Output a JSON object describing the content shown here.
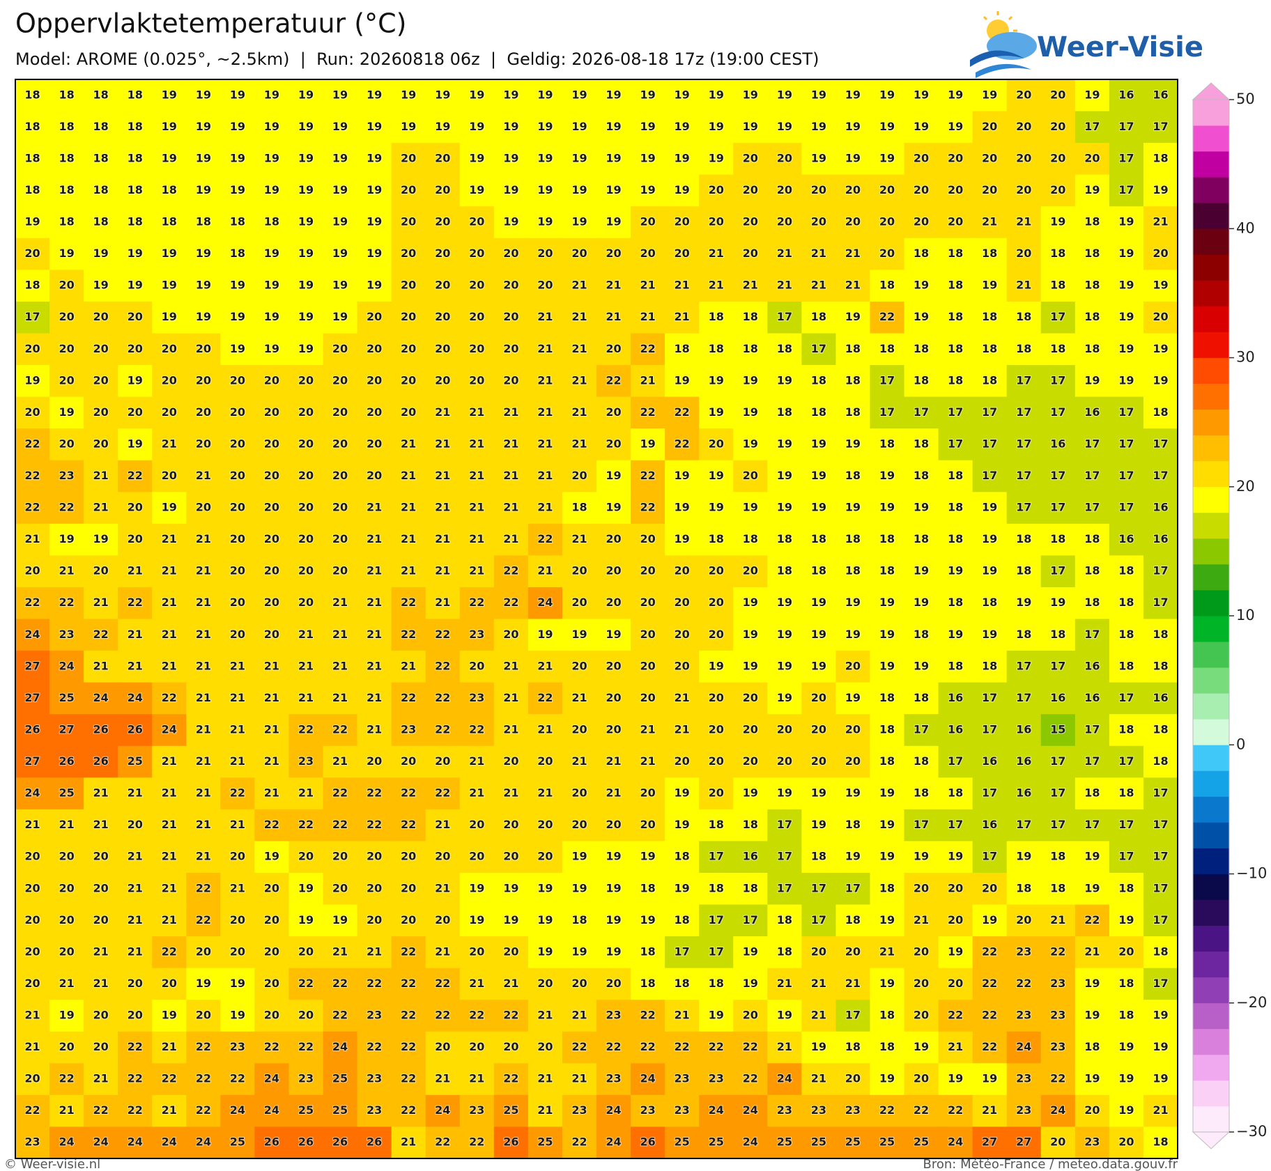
{
  "header": {
    "title": "Oppervlaktetemperatuur (°C)",
    "subtitle": "Model: AROME (0.025°, ~2.5km)  |  Run: 20260818 06z  |  Geldig: 2026-08-18 17z (19:00 CEST)"
  },
  "logo": {
    "text": "Weer-Visie"
  },
  "map": {
    "type": "grid",
    "values": [
      [
        18,
        18,
        18,
        18,
        19,
        19,
        19,
        19,
        19,
        19,
        19,
        19,
        19,
        19,
        19,
        19,
        19,
        19,
        19,
        19,
        19,
        19,
        19,
        19,
        19,
        19,
        19,
        19,
        19,
        20,
        20,
        19,
        16,
        16
      ],
      [
        18,
        18,
        18,
        18,
        19,
        19,
        19,
        19,
        19,
        19,
        19,
        19,
        19,
        19,
        19,
        19,
        19,
        19,
        19,
        19,
        19,
        19,
        19,
        19,
        19,
        19,
        19,
        19,
        20,
        20,
        20,
        17,
        17,
        17
      ],
      [
        18,
        18,
        18,
        18,
        19,
        19,
        19,
        19,
        19,
        19,
        19,
        20,
        20,
        19,
        19,
        19,
        19,
        19,
        19,
        19,
        19,
        20,
        20,
        19,
        19,
        19,
        20,
        20,
        20,
        20,
        20,
        20,
        17,
        18
      ],
      [
        18,
        18,
        18,
        18,
        18,
        19,
        19,
        19,
        19,
        19,
        19,
        20,
        20,
        19,
        19,
        19,
        19,
        19,
        19,
        19,
        20,
        20,
        20,
        20,
        20,
        20,
        20,
        20,
        20,
        20,
        20,
        19,
        17,
        19
      ],
      [
        19,
        18,
        18,
        18,
        18,
        18,
        18,
        18,
        19,
        19,
        19,
        20,
        20,
        20,
        19,
        19,
        19,
        19,
        20,
        20,
        20,
        20,
        20,
        20,
        20,
        20,
        20,
        20,
        21,
        21,
        19,
        18,
        19,
        21
      ],
      [
        20,
        19,
        19,
        19,
        19,
        19,
        18,
        19,
        19,
        19,
        19,
        20,
        20,
        20,
        20,
        20,
        20,
        20,
        20,
        20,
        21,
        20,
        21,
        21,
        21,
        20,
        18,
        18,
        18,
        20,
        18,
        18,
        19,
        20
      ],
      [
        18,
        20,
        19,
        19,
        19,
        19,
        19,
        19,
        19,
        19,
        19,
        20,
        20,
        20,
        20,
        20,
        21,
        21,
        21,
        21,
        21,
        21,
        21,
        21,
        21,
        18,
        19,
        18,
        19,
        21,
        18,
        18,
        19,
        19
      ],
      [
        17,
        20,
        20,
        20,
        19,
        19,
        19,
        19,
        19,
        19,
        20,
        20,
        20,
        20,
        20,
        21,
        21,
        21,
        21,
        21,
        18,
        18,
        17,
        18,
        19,
        22,
        19,
        18,
        18,
        18,
        17,
        18,
        19,
        20
      ],
      [
        20,
        20,
        20,
        20,
        20,
        20,
        19,
        19,
        19,
        20,
        20,
        20,
        20,
        20,
        20,
        21,
        21,
        20,
        22,
        18,
        18,
        18,
        18,
        17,
        18,
        18,
        18,
        18,
        18,
        18,
        18,
        18,
        19,
        19
      ],
      [
        19,
        20,
        20,
        19,
        20,
        20,
        20,
        20,
        20,
        20,
        20,
        20,
        20,
        20,
        20,
        21,
        21,
        22,
        21,
        19,
        19,
        19,
        19,
        18,
        18,
        17,
        18,
        18,
        18,
        17,
        17,
        19,
        19,
        19
      ],
      [
        20,
        19,
        20,
        20,
        20,
        20,
        20,
        20,
        20,
        20,
        20,
        20,
        21,
        21,
        21,
        21,
        21,
        20,
        22,
        22,
        19,
        19,
        18,
        18,
        18,
        17,
        17,
        17,
        17,
        17,
        17,
        16,
        17,
        18
      ],
      [
        22,
        20,
        20,
        19,
        21,
        20,
        20,
        20,
        20,
        20,
        20,
        21,
        21,
        21,
        21,
        21,
        21,
        20,
        19,
        22,
        20,
        19,
        19,
        19,
        19,
        18,
        18,
        17,
        17,
        17,
        16,
        17,
        17,
        17
      ],
      [
        22,
        23,
        21,
        22,
        20,
        21,
        20,
        20,
        20,
        20,
        20,
        21,
        21,
        21,
        21,
        21,
        20,
        19,
        22,
        19,
        19,
        20,
        19,
        19,
        18,
        19,
        18,
        18,
        17,
        17,
        17,
        17,
        17,
        17
      ],
      [
        22,
        22,
        21,
        20,
        19,
        20,
        20,
        20,
        20,
        20,
        21,
        21,
        21,
        21,
        21,
        21,
        18,
        19,
        22,
        19,
        19,
        19,
        19,
        19,
        19,
        19,
        19,
        18,
        19,
        17,
        17,
        17,
        17,
        16
      ],
      [
        21,
        19,
        19,
        20,
        21,
        21,
        20,
        20,
        20,
        20,
        21,
        21,
        21,
        21,
        21,
        22,
        21,
        20,
        20,
        19,
        18,
        18,
        18,
        18,
        18,
        18,
        18,
        18,
        19,
        18,
        18,
        18,
        16,
        16
      ],
      [
        20,
        21,
        20,
        21,
        21,
        21,
        20,
        20,
        20,
        20,
        21,
        21,
        21,
        21,
        22,
        21,
        20,
        20,
        20,
        20,
        20,
        20,
        18,
        18,
        18,
        18,
        19,
        19,
        19,
        18,
        17,
        18,
        18,
        17
      ],
      [
        22,
        22,
        21,
        22,
        21,
        21,
        20,
        20,
        20,
        21,
        21,
        22,
        21,
        22,
        22,
        24,
        20,
        20,
        20,
        20,
        20,
        19,
        19,
        19,
        19,
        19,
        19,
        18,
        18,
        19,
        19,
        18,
        18,
        17
      ],
      [
        24,
        23,
        22,
        21,
        21,
        21,
        20,
        20,
        21,
        21,
        21,
        22,
        22,
        23,
        20,
        19,
        19,
        19,
        20,
        20,
        20,
        19,
        19,
        19,
        19,
        19,
        18,
        19,
        19,
        18,
        18,
        17,
        18,
        18
      ],
      [
        27,
        24,
        21,
        21,
        21,
        21,
        21,
        21,
        21,
        21,
        21,
        21,
        22,
        20,
        21,
        21,
        20,
        20,
        20,
        20,
        19,
        19,
        19,
        19,
        20,
        19,
        19,
        18,
        18,
        17,
        17,
        16,
        18,
        18
      ],
      [
        27,
        25,
        24,
        24,
        22,
        21,
        21,
        21,
        21,
        21,
        21,
        22,
        22,
        23,
        21,
        22,
        21,
        20,
        20,
        21,
        20,
        20,
        19,
        20,
        19,
        18,
        18,
        16,
        17,
        17,
        16,
        16,
        17,
        16
      ],
      [
        26,
        27,
        26,
        26,
        24,
        21,
        21,
        21,
        22,
        22,
        21,
        23,
        22,
        22,
        21,
        21,
        20,
        20,
        21,
        21,
        20,
        20,
        20,
        20,
        20,
        18,
        17,
        16,
        17,
        16,
        15,
        17,
        18,
        18
      ],
      [
        27,
        26,
        26,
        25,
        21,
        21,
        21,
        21,
        23,
        21,
        20,
        20,
        20,
        21,
        20,
        20,
        21,
        21,
        21,
        20,
        20,
        20,
        20,
        20,
        20,
        18,
        18,
        17,
        16,
        16,
        17,
        17,
        17,
        18
      ],
      [
        24,
        25,
        21,
        21,
        21,
        21,
        22,
        21,
        21,
        22,
        22,
        22,
        22,
        21,
        21,
        21,
        20,
        21,
        20,
        19,
        20,
        19,
        19,
        19,
        19,
        19,
        18,
        18,
        17,
        16,
        17,
        18,
        18,
        17
      ],
      [
        21,
        21,
        21,
        20,
        21,
        21,
        21,
        22,
        22,
        22,
        22,
        22,
        21,
        20,
        20,
        20,
        20,
        20,
        20,
        19,
        18,
        18,
        17,
        19,
        18,
        19,
        17,
        17,
        16,
        17,
        17,
        17,
        17,
        17
      ],
      [
        20,
        20,
        20,
        21,
        21,
        21,
        20,
        19,
        20,
        20,
        20,
        20,
        20,
        20,
        20,
        20,
        19,
        19,
        19,
        18,
        17,
        16,
        17,
        18,
        19,
        19,
        19,
        19,
        17,
        19,
        18,
        19,
        17,
        17
      ],
      [
        20,
        20,
        20,
        21,
        21,
        22,
        21,
        20,
        19,
        20,
        20,
        20,
        21,
        19,
        19,
        19,
        19,
        19,
        18,
        19,
        18,
        18,
        17,
        17,
        17,
        18,
        20,
        20,
        20,
        18,
        18,
        19,
        18,
        17
      ],
      [
        20,
        20,
        20,
        21,
        21,
        22,
        20,
        20,
        19,
        19,
        20,
        20,
        20,
        19,
        19,
        19,
        18,
        19,
        19,
        18,
        17,
        17,
        18,
        17,
        18,
        19,
        21,
        20,
        19,
        20,
        21,
        22,
        19,
        17
      ],
      [
        20,
        20,
        21,
        21,
        22,
        20,
        20,
        20,
        20,
        21,
        21,
        22,
        21,
        20,
        20,
        19,
        19,
        19,
        18,
        17,
        17,
        19,
        18,
        20,
        20,
        21,
        20,
        19,
        22,
        23,
        22,
        21,
        20,
        18
      ],
      [
        20,
        21,
        21,
        20,
        20,
        19,
        19,
        20,
        22,
        22,
        22,
        22,
        22,
        21,
        21,
        20,
        20,
        20,
        18,
        18,
        18,
        19,
        21,
        21,
        21,
        19,
        20,
        20,
        22,
        22,
        23,
        19,
        18,
        17
      ],
      [
        21,
        19,
        20,
        20,
        19,
        20,
        19,
        20,
        20,
        22,
        23,
        22,
        22,
        22,
        22,
        21,
        21,
        23,
        22,
        21,
        19,
        20,
        19,
        21,
        17,
        18,
        20,
        22,
        22,
        23,
        23,
        19,
        18,
        19
      ],
      [
        21,
        20,
        20,
        22,
        21,
        22,
        23,
        22,
        22,
        24,
        22,
        22,
        20,
        20,
        20,
        20,
        22,
        22,
        22,
        22,
        22,
        22,
        21,
        19,
        18,
        18,
        19,
        21,
        22,
        24,
        23,
        18,
        19,
        19
      ],
      [
        20,
        22,
        21,
        22,
        22,
        22,
        22,
        24,
        23,
        25,
        23,
        22,
        21,
        21,
        22,
        21,
        21,
        23,
        24,
        23,
        23,
        22,
        24,
        21,
        20,
        19,
        20,
        19,
        19,
        23,
        22,
        19,
        19,
        19
      ],
      [
        22,
        21,
        22,
        22,
        21,
        22,
        24,
        24,
        25,
        25,
        23,
        22,
        24,
        23,
        25,
        21,
        23,
        24,
        23,
        23,
        24,
        24,
        23,
        23,
        23,
        22,
        22,
        22,
        21,
        23,
        24,
        20,
        19,
        21
      ],
      [
        23,
        24,
        24,
        24,
        24,
        24,
        25,
        26,
        26,
        26,
        26,
        21,
        22,
        22,
        26,
        25,
        22,
        24,
        26,
        25,
        25,
        24,
        25,
        25,
        25,
        25,
        25,
        24,
        27,
        27,
        20,
        23,
        20,
        18
      ]
    ]
  },
  "colorbar": {
    "lim": [
      -30,
      50
    ],
    "colors": [
      "#fdeafb",
      "#fad0f6",
      "#f0a8ee",
      "#d880dc",
      "#b860c8",
      "#9040b4",
      "#6e26a0",
      "#4b1485",
      "#2a0a5a",
      "#0a0a4a",
      "#00207e",
      "#0050a8",
      "#0a78cc",
      "#15a3e8",
      "#3fc8f8",
      "#d4fadc",
      "#a8eeb0",
      "#78dc7c",
      "#44c450",
      "#00b428",
      "#009a1a",
      "#3caa10",
      "#8cc800",
      "#c8dc00",
      "#ffff00",
      "#ffdd00",
      "#ffbf00",
      "#ff9900",
      "#ff7000",
      "#ff4c00",
      "#f01000",
      "#d80000",
      "#b00000",
      "#8c0000",
      "#6a0010",
      "#4a0030",
      "#800060",
      "#c000a0",
      "#f050d0",
      "#f8a0dc"
    ],
    "ticks": [
      {
        "value": -30,
        "label": "−30"
      },
      {
        "value": -20,
        "label": "−20"
      },
      {
        "value": -10,
        "label": "−10"
      },
      0,
      10,
      20,
      30,
      40,
      50
    ]
  },
  "footer": {
    "left": "© Weer-visie.nl",
    "right": "Bron: Météo-France / meteo.data.gouv.fr"
  }
}
